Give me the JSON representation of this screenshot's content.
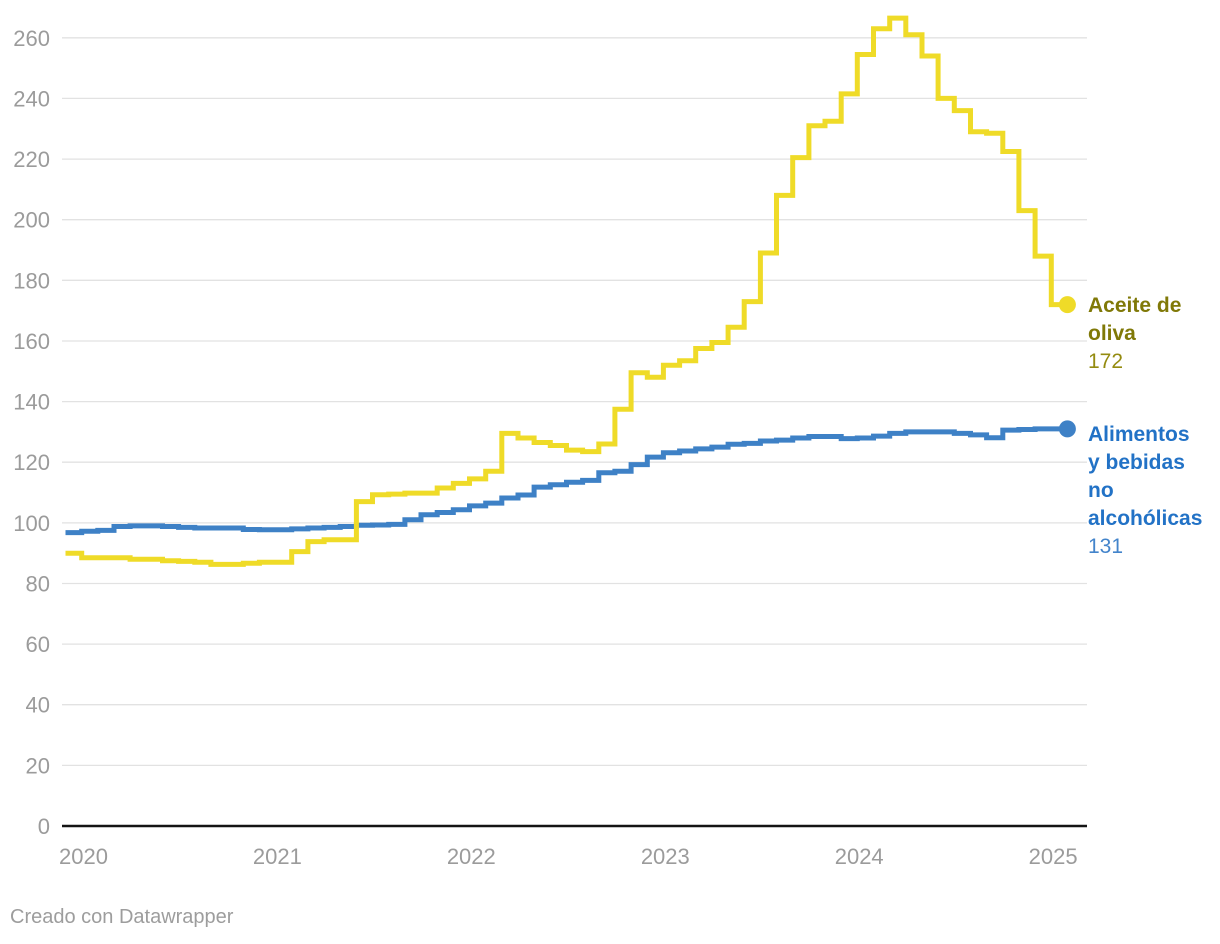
{
  "footer": {
    "text": "Creado con Datawrapper"
  },
  "legend": {
    "items": [
      {
        "id": "aceite-de-oliva",
        "label": "Aceite de\noliva",
        "value": "172",
        "label_color": "#807908",
        "value_color": "#948B10"
      },
      {
        "id": "alimentos-bebidas",
        "label": "Alimentos\ny bebidas\nno\nalcohólicas",
        "value": "131",
        "label_color": "#2272C6",
        "value_color": "#4384CB"
      }
    ]
  },
  "chart_data": {
    "type": "line",
    "line_style": "steps",
    "title": "",
    "xlabel": "",
    "ylabel": "",
    "grid": true,
    "legend_position": "right-of-line-ends",
    "x_unit": "month",
    "x_range": [
      "2020-01",
      "2025-02"
    ],
    "x_tick_labels": [
      "2020",
      "2021",
      "2022",
      "2023",
      "2024",
      "2025"
    ],
    "y_axis": {
      "min": 0,
      "max": 260,
      "tick_step": 20
    },
    "months": [
      "2020-01",
      "2020-02",
      "2020-03",
      "2020-04",
      "2020-05",
      "2020-06",
      "2020-07",
      "2020-08",
      "2020-09",
      "2020-10",
      "2020-11",
      "2020-12",
      "2021-01",
      "2021-02",
      "2021-03",
      "2021-04",
      "2021-05",
      "2021-06",
      "2021-07",
      "2021-08",
      "2021-09",
      "2021-10",
      "2021-11",
      "2021-12",
      "2022-01",
      "2022-02",
      "2022-03",
      "2022-04",
      "2022-05",
      "2022-06",
      "2022-07",
      "2022-08",
      "2022-09",
      "2022-10",
      "2022-11",
      "2022-12",
      "2023-01",
      "2023-02",
      "2023-03",
      "2023-04",
      "2023-05",
      "2023-06",
      "2023-07",
      "2023-08",
      "2023-09",
      "2023-10",
      "2023-11",
      "2023-12",
      "2024-01",
      "2024-02",
      "2024-03",
      "2024-04",
      "2024-05",
      "2024-06",
      "2024-07",
      "2024-08",
      "2024-09",
      "2024-10",
      "2024-11",
      "2024-12",
      "2025-01",
      "2025-02"
    ],
    "series": [
      {
        "name": "Aceite de oliva",
        "slug": "aceite-de-oliva",
        "color": "#EFDB28",
        "end_value_label": "172",
        "values": [
          90,
          88.5,
          88.5,
          88.5,
          88,
          88,
          87.5,
          87.3,
          87,
          86.3,
          86.3,
          86.7,
          87,
          87,
          90.5,
          93.8,
          94.4,
          94.4,
          107,
          109.3,
          109.5,
          109.8,
          109.8,
          111.5,
          113,
          114.5,
          117,
          129.5,
          128,
          126.5,
          125.5,
          124,
          123.5,
          126,
          137.5,
          149.5,
          148,
          152,
          153.5,
          157.5,
          159.5,
          164.5,
          173,
          189,
          208,
          220.5,
          231,
          232.5,
          241.5,
          254.5,
          263,
          266.5,
          261,
          254,
          240,
          236,
          229,
          228.5,
          222.5,
          203,
          188,
          172
        ]
      },
      {
        "name": "Alimentos y bebidas no alcohólicas",
        "slug": "alimentos-bebidas",
        "color": "#3E81C6",
        "end_value_label": "131",
        "values": [
          96.8,
          97.2,
          97.5,
          98.8,
          99,
          99,
          98.8,
          98.5,
          98.3,
          98.3,
          98.3,
          97.8,
          97.7,
          97.7,
          98,
          98.3,
          98.5,
          98.8,
          99.2,
          99.3,
          99.5,
          101,
          102.7,
          103.4,
          104.3,
          105.6,
          106.5,
          108.2,
          109.2,
          111.8,
          112.6,
          113.4,
          114,
          116.5,
          117,
          119.2,
          121.7,
          123.1,
          123.7,
          124.4,
          125,
          125.9,
          126.2,
          127,
          127.3,
          128,
          128.5,
          128.5,
          127.8,
          128,
          128.6,
          129.5,
          130,
          130,
          130,
          129.5,
          129,
          128.1,
          130.6,
          130.8,
          131,
          131
        ]
      }
    ]
  }
}
